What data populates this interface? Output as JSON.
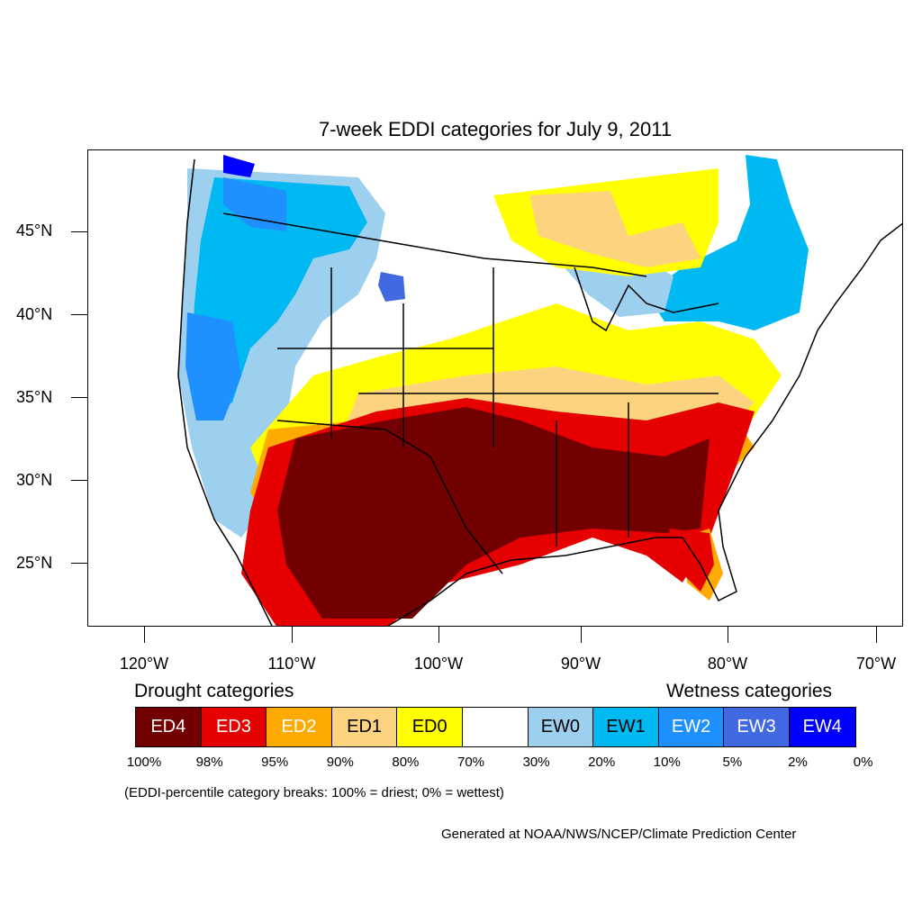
{
  "title": "7-week EDDI categories for July 9, 2011",
  "lat_labels": [
    "45°N",
    "40°N",
    "35°N",
    "30°N",
    "25°N"
  ],
  "lon_labels": [
    "120°W",
    "110°W",
    "100°W",
    "90°W",
    "80°W",
    "70°W"
  ],
  "legend": {
    "drought_heading": "Drought categories",
    "wetness_heading": "Wetness categories",
    "categories": [
      {
        "label": "ED4",
        "color": "#730000",
        "text_color": "#ffffff"
      },
      {
        "label": "ED3",
        "color": "#e60000",
        "text_color": "#ffffff"
      },
      {
        "label": "ED2",
        "color": "#ffaa00",
        "text_color": "#ffffff"
      },
      {
        "label": "ED1",
        "color": "#fcd37f",
        "text_color": "#000000"
      },
      {
        "label": "ED0",
        "color": "#ffff00",
        "text_color": "#000000"
      },
      {
        "label": "",
        "color": "#ffffff",
        "text_color": "#000000"
      },
      {
        "label": "EW0",
        "color": "#9dcfef",
        "text_color": "#000000"
      },
      {
        "label": "EW1",
        "color": "#00b9f2",
        "text_color": "#000000"
      },
      {
        "label": "EW2",
        "color": "#1e90ff",
        "text_color": "#ffffff"
      },
      {
        "label": "EW3",
        "color": "#4169e1",
        "text_color": "#ffffff"
      },
      {
        "label": "EW4",
        "color": "#0000ff",
        "text_color": "#ffffff"
      }
    ],
    "percentiles": [
      "100%",
      "98%",
      "95%",
      "90%",
      "80%",
      "70%",
      "30%",
      "20%",
      "10%",
      "5%",
      "2%",
      "0%"
    ]
  },
  "note": "(EDDI-percentile category breaks: 100% = driest; 0% = wettest)",
  "credit": "Generated at NOAA/NWS/NCEP/Climate Prediction Center"
}
